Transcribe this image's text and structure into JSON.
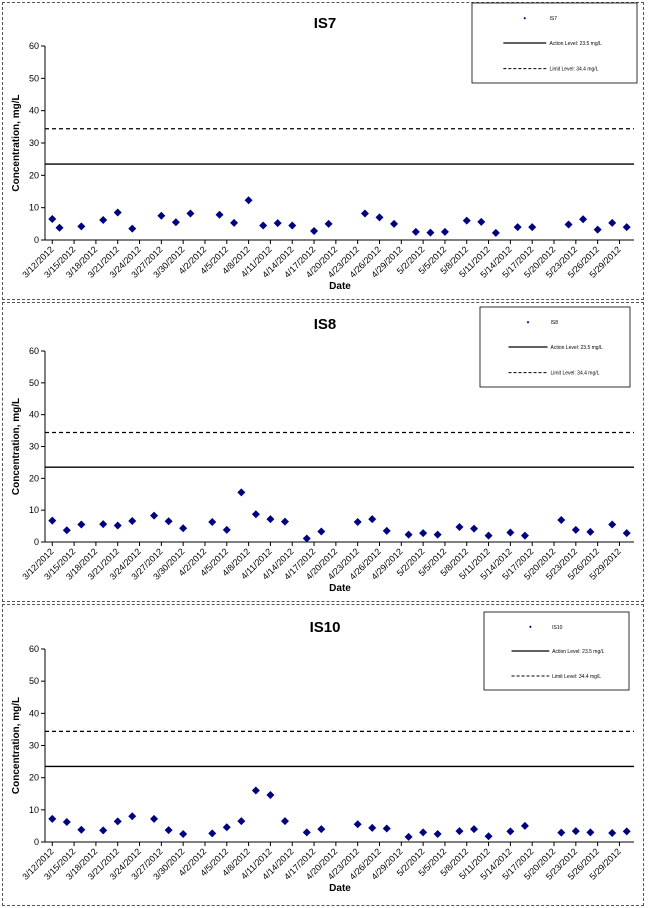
{
  "chart_data": [
    {
      "type": "scatter",
      "title": "IS7",
      "xlabel": "Date",
      "ylabel": "Concentration, mg/L",
      "ylim": [
        0,
        60
      ],
      "yticks": [
        0,
        10,
        20,
        30,
        40,
        50,
        60
      ],
      "categories": [
        "3/12/2012",
        "3/15/2012",
        "3/18/2012",
        "3/21/2012",
        "3/24/2012",
        "3/27/2012",
        "3/30/2012",
        "4/2/2012",
        "4/5/2012",
        "4/8/2012",
        "4/11/2012",
        "4/14/2012",
        "4/17/2012",
        "4/20/2012",
        "4/23/2012",
        "4/26/2012",
        "4/29/2012",
        "5/2/2012",
        "5/5/2012",
        "5/8/2012",
        "5/11/2012",
        "5/14/2012",
        "5/17/2012",
        "5/20/2012",
        "5/23/2012",
        "5/26/2012",
        "5/29/2012"
      ],
      "series": [
        {
          "name": "IS7",
          "marker": "diamond",
          "color": "#000080",
          "x": [
            "3/12/2012",
            "3/13/2012",
            "3/16/2012",
            "3/19/2012",
            "3/21/2012",
            "3/23/2012",
            "3/27/2012",
            "3/29/2012",
            "3/31/2012",
            "4/4/2012",
            "4/6/2012",
            "4/8/2012",
            "4/10/2012",
            "4/12/2012",
            "4/14/2012",
            "4/17/2012",
            "4/19/2012",
            "4/24/2012",
            "4/26/2012",
            "4/28/2012",
            "5/1/2012",
            "5/3/2012",
            "5/5/2012",
            "5/8/2012",
            "5/10/2012",
            "5/12/2012",
            "5/15/2012",
            "5/17/2012",
            "5/22/2012",
            "5/24/2012",
            "5/26/2012",
            "5/28/2012",
            "5/30/2012"
          ],
          "y": [
            6.5,
            3.8,
            4.2,
            6.2,
            8.5,
            3.5,
            7.5,
            5.5,
            8.2,
            7.8,
            5.3,
            12.3,
            4.5,
            5.2,
            4.5,
            2.8,
            5.0,
            8.2,
            7.0,
            5.0,
            2.5,
            2.3,
            2.5,
            6.0,
            5.6,
            2.2,
            4.0,
            4.0,
            4.8,
            6.4,
            3.2,
            5.3,
            4.0
          ]
        },
        {
          "name": "Action Level: 23.5 mg/L",
          "line": "solid",
          "value": 23.5
        },
        {
          "name": "Limit Level: 34.4 mg/L",
          "line": "dashed",
          "value": 34.4
        }
      ],
      "legend_position": "top-right"
    },
    {
      "type": "scatter",
      "title": "IS8",
      "xlabel": "Date",
      "ylabel": "Concentration, mg/L",
      "ylim": [
        0,
        60
      ],
      "yticks": [
        0,
        10,
        20,
        30,
        40,
        50,
        60
      ],
      "categories": [
        "3/12/2012",
        "3/15/2012",
        "3/18/2012",
        "3/21/2012",
        "3/24/2012",
        "3/27/2012",
        "3/30/2012",
        "4/2/2012",
        "4/5/2012",
        "4/8/2012",
        "4/11/2012",
        "4/14/2012",
        "4/17/2012",
        "4/20/2012",
        "4/23/2012",
        "4/26/2012",
        "4/29/2012",
        "5/2/2012",
        "5/5/2012",
        "5/8/2012",
        "5/11/2012",
        "5/14/2012",
        "5/17/2012",
        "5/20/2012",
        "5/23/2012",
        "5/26/2012",
        "5/29/2012"
      ],
      "series": [
        {
          "name": "IS8",
          "marker": "diamond",
          "color": "#000080",
          "x": [
            "3/12/2012",
            "3/14/2012",
            "3/16/2012",
            "3/19/2012",
            "3/21/2012",
            "3/23/2012",
            "3/26/2012",
            "3/28/2012",
            "3/30/2012",
            "4/3/2012",
            "4/5/2012",
            "4/7/2012",
            "4/9/2012",
            "4/11/2012",
            "4/13/2012",
            "4/16/2012",
            "4/18/2012",
            "4/23/2012",
            "4/25/2012",
            "4/27/2012",
            "4/30/2012",
            "5/2/2012",
            "5/4/2012",
            "5/7/2012",
            "5/9/2012",
            "5/11/2012",
            "5/14/2012",
            "5/16/2012",
            "5/21/2012",
            "5/23/2012",
            "5/25/2012",
            "5/28/2012",
            "5/30/2012"
          ],
          "y": [
            6.7,
            3.7,
            5.5,
            5.6,
            5.2,
            6.6,
            8.3,
            6.5,
            4.3,
            6.3,
            3.8,
            15.6,
            8.7,
            7.2,
            6.4,
            1.1,
            3.3,
            6.3,
            7.2,
            3.5,
            2.3,
            2.8,
            2.3,
            4.7,
            4.2,
            2.0,
            3.0,
            2.0,
            6.9,
            3.8,
            3.2,
            5.5,
            2.8
          ]
        },
        {
          "name": "Action Level: 23.5 mg/L",
          "line": "solid",
          "value": 23.5
        },
        {
          "name": "Limit Level: 34.4 mg/L",
          "line": "dashed",
          "value": 34.4
        }
      ],
      "legend_position": "top-right"
    },
    {
      "type": "scatter",
      "title": "IS10",
      "xlabel": "Date",
      "ylabel": "Concentration, mg/L",
      "ylim": [
        0,
        60
      ],
      "yticks": [
        0,
        10,
        20,
        30,
        40,
        50,
        60
      ],
      "categories": [
        "3/12/2012",
        "3/15/2012",
        "3/18/2012",
        "3/21/2012",
        "3/24/2012",
        "3/27/2012",
        "3/30/2012",
        "4/2/2012",
        "4/5/2012",
        "4/8/2012",
        "4/11/2012",
        "4/14/2012",
        "4/17/2012",
        "4/20/2012",
        "4/23/2012",
        "4/26/2012",
        "4/29/2012",
        "5/2/2012",
        "5/5/2012",
        "5/8/2012",
        "5/11/2012",
        "5/14/2012",
        "5/17/2012",
        "5/20/2012",
        "5/23/2012",
        "5/26/2012",
        "5/29/2012"
      ],
      "series": [
        {
          "name": "IS10",
          "marker": "diamond",
          "color": "#000080",
          "x": [
            "3/12/2012",
            "3/14/2012",
            "3/16/2012",
            "3/19/2012",
            "3/21/2012",
            "3/23/2012",
            "3/26/2012",
            "3/28/2012",
            "3/30/2012",
            "4/3/2012",
            "4/5/2012",
            "4/7/2012",
            "4/9/2012",
            "4/11/2012",
            "4/13/2012",
            "4/16/2012",
            "4/18/2012",
            "4/23/2012",
            "4/25/2012",
            "4/27/2012",
            "4/30/2012",
            "5/2/2012",
            "5/4/2012",
            "5/7/2012",
            "5/9/2012",
            "5/11/2012",
            "5/14/2012",
            "5/16/2012",
            "5/21/2012",
            "5/23/2012",
            "5/25/2012",
            "5/28/2012",
            "5/30/2012"
          ],
          "y": [
            7.2,
            6.2,
            3.8,
            3.6,
            6.4,
            8.0,
            7.2,
            3.7,
            2.5,
            2.7,
            4.6,
            6.5,
            16.0,
            14.6,
            6.5,
            3.0,
            4.0,
            5.5,
            4.4,
            4.2,
            1.6,
            3.0,
            2.5,
            3.4,
            4.0,
            1.8,
            3.3,
            5.0,
            2.9,
            3.4,
            3.0,
            2.8,
            3.3
          ]
        },
        {
          "name": "Action Level: 23.5 mg/L",
          "line": "solid",
          "value": 23.5
        },
        {
          "name": "Limit Level: 34.4 mg/L",
          "line": "dashed",
          "value": 34.4
        }
      ],
      "legend_position": "top-right"
    }
  ]
}
